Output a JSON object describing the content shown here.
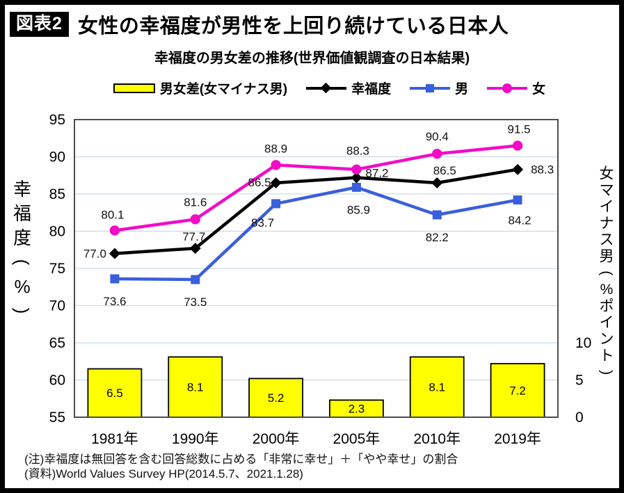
{
  "page": {
    "badge": "図表2",
    "title": "女性の幸福度が男性を上回り続けている日本人",
    "subtitle": "幸福度の男女差の推移(世界価値観調査の日本結果)",
    "note_line1": "(注)幸福度は無回答を含む回答総数に占める「非常に幸せ」＋「やや幸せ」の割合",
    "note_line2": "(資料)World Values Survey HP(2014.5.7、2021.1.28)"
  },
  "chart_data": {
    "type": "combo-bar-line",
    "categories": [
      "1981年",
      "1990年",
      "2000年",
      "2005年",
      "2010年",
      "2019年"
    ],
    "bar_series": {
      "name": "男女差(女マイナス男)",
      "values": [
        6.5,
        8.1,
        5.2,
        2.3,
        8.1,
        7.2
      ],
      "axis": "right"
    },
    "line_series": [
      {
        "name": "幸福度",
        "key": "happiness",
        "marker": "diamond",
        "values": [
          77.0,
          77.7,
          86.5,
          87.2,
          86.5,
          88.3
        ]
      },
      {
        "name": "男",
        "key": "men",
        "marker": "square",
        "values": [
          73.6,
          73.5,
          83.7,
          85.9,
          82.2,
          84.2
        ]
      },
      {
        "name": "女",
        "key": "women",
        "marker": "circle",
        "values": [
          80.1,
          81.6,
          88.9,
          88.3,
          90.4,
          91.5
        ]
      }
    ],
    "left_axis": {
      "label": "幸福度(%)",
      "min": 55,
      "max": 95,
      "ticks": [
        95,
        90,
        85,
        80,
        75,
        70,
        65,
        60,
        55
      ]
    },
    "right_axis": {
      "label": "女マイナス男(%ポイント)",
      "ticks": [
        10,
        5,
        0
      ]
    },
    "grid": "horizontal",
    "legend_position": "top",
    "colors": {
      "bar_fill": "#FFFF00",
      "bar_border": "#000000",
      "happiness": "#000000",
      "men": "#3A5FDC",
      "women": "#F20CC6",
      "grid": "#CCD9E6",
      "frame": "#4D4D4D",
      "text": "#000000"
    }
  }
}
